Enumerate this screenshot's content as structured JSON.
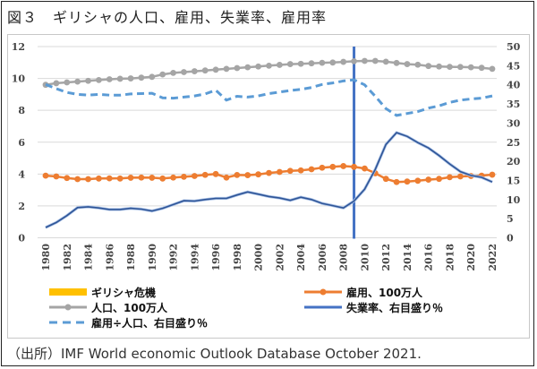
{
  "figure": {
    "title": "図３　ギリシャの人口、雇用、失業率、雇用率",
    "source": "（出所）IMF World economic Outlook Database October 2021."
  },
  "chart_data": {
    "type": "line",
    "title": "ギリシャの人口、雇用、失業率、雇用率",
    "x": [
      1980,
      1981,
      1982,
      1983,
      1984,
      1985,
      1986,
      1987,
      1988,
      1989,
      1990,
      1991,
      1992,
      1993,
      1994,
      1995,
      1996,
      1997,
      1998,
      1999,
      2000,
      2001,
      2002,
      2003,
      2004,
      2005,
      2006,
      2007,
      2008,
      2009,
      2010,
      2011,
      2012,
      2013,
      2014,
      2015,
      2016,
      2017,
      2018,
      2019,
      2020,
      2021,
      2022
    ],
    "x_tick_labels": [
      "1980",
      "1982",
      "1984",
      "1986",
      "1988",
      "1990",
      "1992",
      "1994",
      "1996",
      "1998",
      "2000",
      "2002",
      "2004",
      "2006",
      "2008",
      "2010",
      "2012",
      "2014",
      "2016",
      "2018",
      "2020",
      "2022"
    ],
    "y_left": {
      "ylim": [
        0,
        12
      ],
      "ticks": [
        "0",
        "2",
        "4",
        "6",
        "8",
        "10",
        "12"
      ],
      "label": ""
    },
    "y_right": {
      "ylim": [
        0,
        50
      ],
      "ticks": [
        "0",
        "5",
        "10",
        "15",
        "20",
        "25",
        "30",
        "35",
        "40",
        "45",
        "50"
      ],
      "label": ""
    },
    "grid": true,
    "legend_position": "bottom",
    "crisis_marker": {
      "name": "ギリシャ危機",
      "year": 2009,
      "color": "#4472C4",
      "legend_color": "#FFC000"
    },
    "series": [
      {
        "name": "人口、100万人",
        "axis": "left",
        "color": "#A5A5A5",
        "style": "solid-marker",
        "values": [
          9.6,
          9.7,
          9.75,
          9.8,
          9.85,
          9.9,
          9.95,
          9.98,
          10.0,
          10.05,
          10.1,
          10.25,
          10.35,
          10.4,
          10.45,
          10.5,
          10.55,
          10.6,
          10.65,
          10.7,
          10.75,
          10.8,
          10.85,
          10.9,
          10.92,
          10.95,
          10.98,
          11.0,
          11.04,
          11.08,
          11.1,
          11.1,
          11.05,
          10.97,
          10.9,
          10.86,
          10.78,
          10.75,
          10.73,
          10.72,
          10.7,
          10.67,
          10.6
        ]
      },
      {
        "name": "雇用、100万人",
        "axis": "left",
        "color": "#ED7D31",
        "style": "solid-marker",
        "values": [
          3.9,
          3.85,
          3.75,
          3.68,
          3.68,
          3.72,
          3.73,
          3.72,
          3.77,
          3.78,
          3.77,
          3.72,
          3.78,
          3.83,
          3.88,
          3.95,
          4.0,
          3.78,
          3.94,
          3.93,
          3.98,
          4.07,
          4.13,
          4.2,
          4.23,
          4.3,
          4.4,
          4.45,
          4.5,
          4.45,
          4.35,
          4.05,
          3.7,
          3.5,
          3.53,
          3.58,
          3.65,
          3.7,
          3.8,
          3.85,
          3.88,
          3.9,
          3.96
        ]
      },
      {
        "name": "失業率、右目盛り％",
        "axis": "right",
        "color": "#2F5597",
        "style": "solid",
        "values": [
          2.7,
          4.0,
          5.8,
          7.9,
          8.1,
          7.8,
          7.4,
          7.4,
          7.7,
          7.5,
          7.0,
          7.7,
          8.7,
          9.7,
          9.6,
          10.0,
          10.3,
          10.3,
          11.2,
          12.0,
          11.4,
          10.8,
          10.4,
          9.8,
          10.6,
          10.0,
          9.0,
          8.4,
          7.8,
          9.6,
          12.7,
          17.9,
          24.4,
          27.5,
          26.5,
          24.9,
          23.5,
          21.5,
          19.3,
          17.3,
          16.3,
          15.8,
          14.6
        ]
      },
      {
        "name": "雇用÷人口、右目盛り％",
        "axis": "right",
        "color": "#5B9BD5",
        "style": "dashed",
        "values": [
          40.1,
          39.0,
          38.0,
          37.5,
          37.3,
          37.5,
          37.3,
          37.3,
          37.6,
          37.7,
          37.8,
          36.6,
          36.5,
          36.8,
          37.1,
          37.6,
          38.6,
          36.0,
          37.0,
          36.8,
          37.1,
          37.7,
          38.1,
          38.5,
          38.8,
          39.3,
          40.1,
          40.5,
          41.0,
          41.3,
          40.0,
          37.0,
          33.8,
          32.0,
          32.5,
          33.0,
          33.9,
          34.5,
          35.4,
          36.0,
          36.3,
          36.5,
          37.1
        ]
      }
    ],
    "legend": [
      {
        "label": "ギリシャ危機",
        "kind": "bar",
        "color": "#FFC000"
      },
      {
        "label": "雇用、100万人",
        "kind": "line-marker",
        "color": "#ED7D31"
      },
      {
        "label": "人口、100万人",
        "kind": "line-marker",
        "color": "#A5A5A5"
      },
      {
        "label": "失業率、右目盛り％",
        "kind": "line",
        "color": "#4472C4"
      },
      {
        "label": "雇用÷人口、右目盛り％",
        "kind": "dashed",
        "color": "#5B9BD5"
      }
    ]
  }
}
